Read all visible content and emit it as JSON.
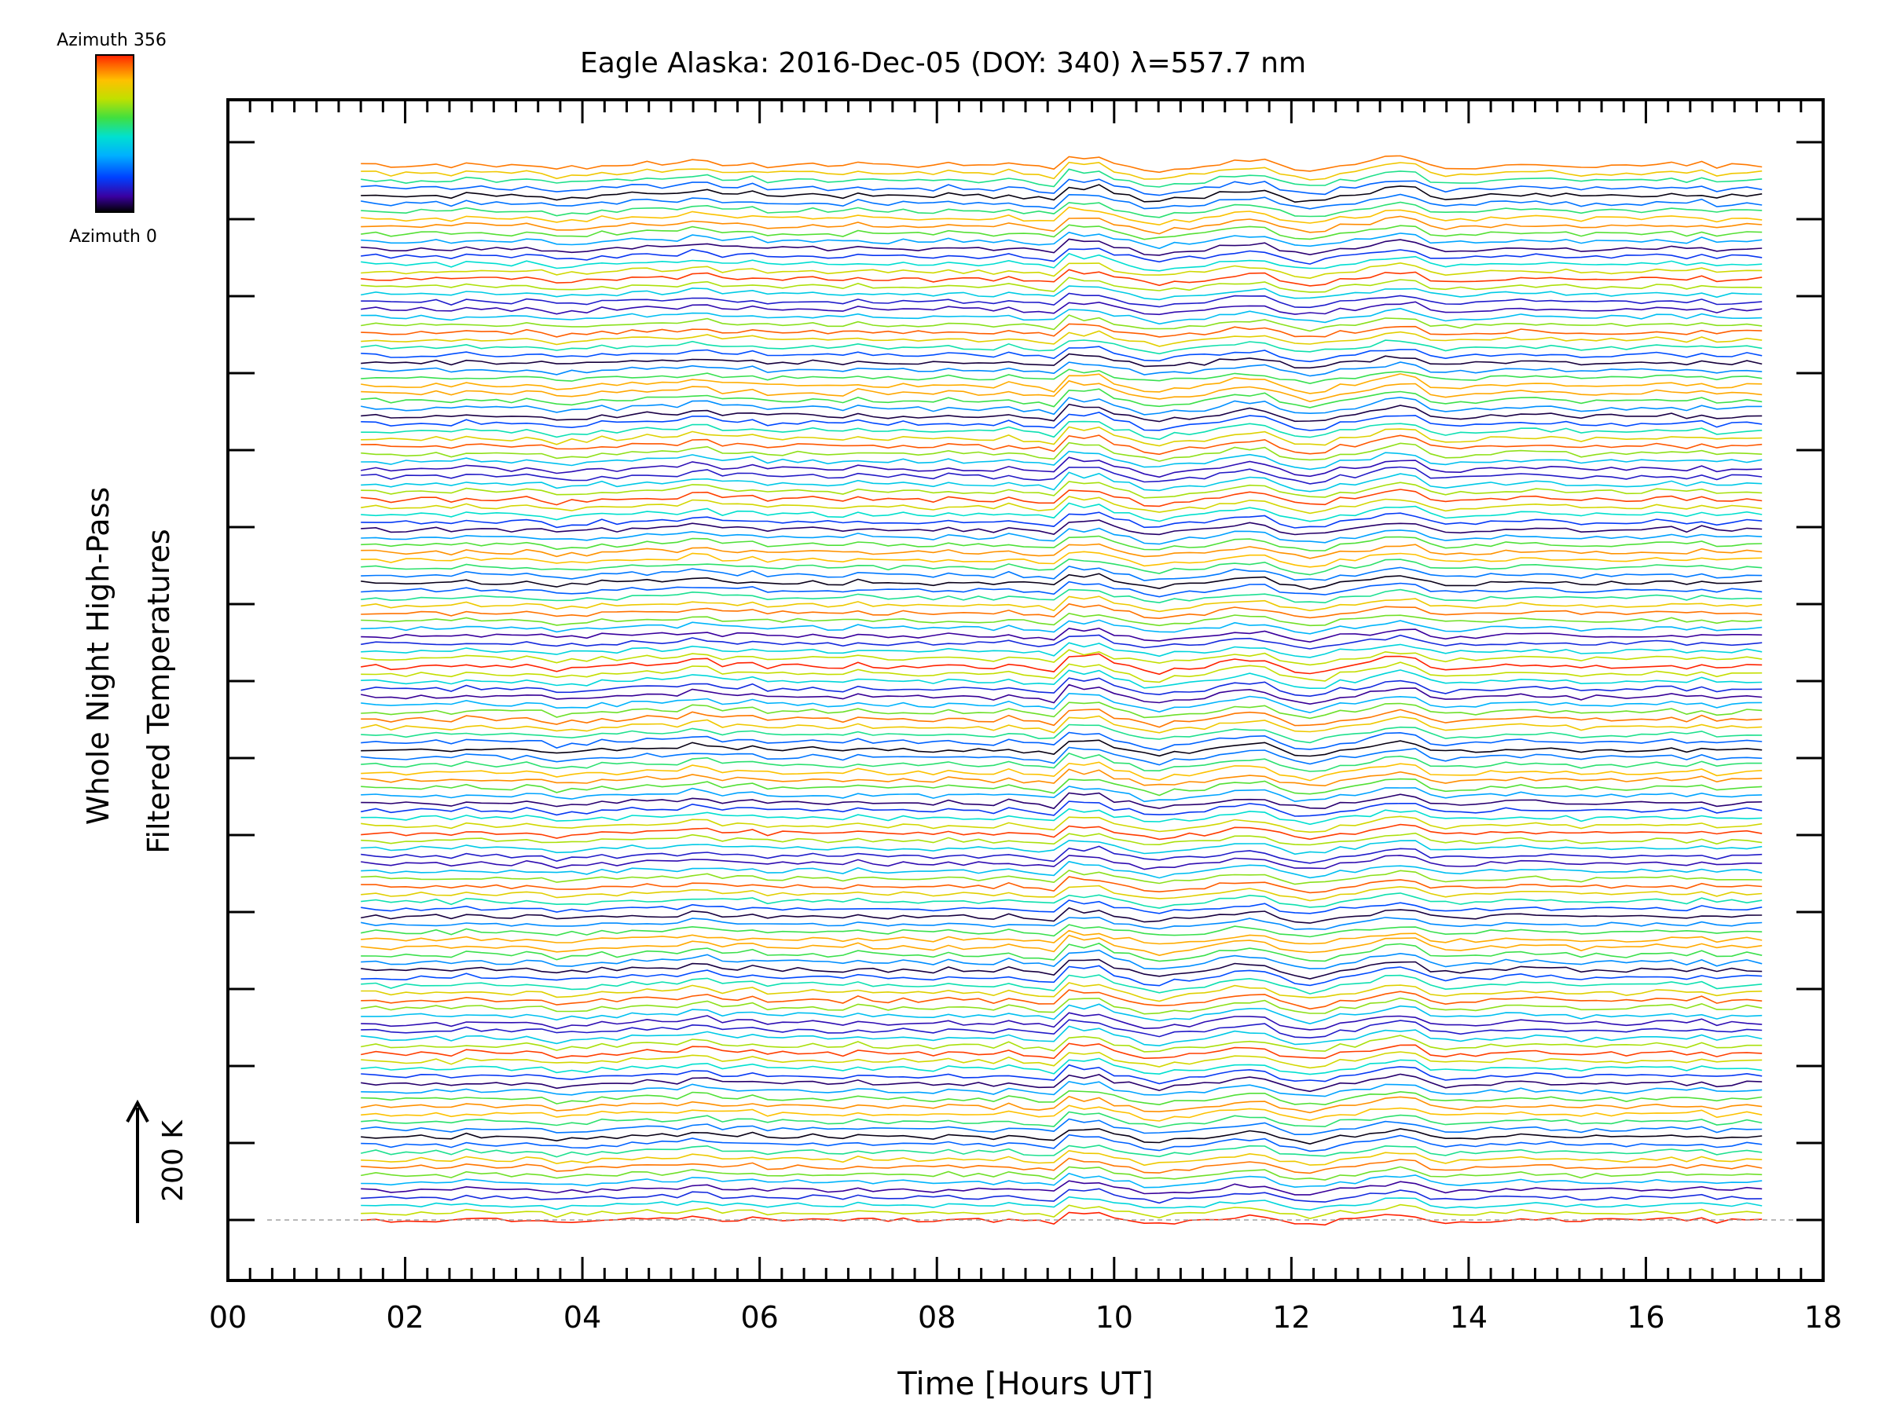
{
  "chart_data": {
    "type": "line",
    "title": "Eagle Alaska: 2016-Dec-05 (DOY: 340) λ=557.7 nm",
    "xlabel": "Time [Hours UT]",
    "ylabel_line1": "Whole Night High-Pass",
    "ylabel_line2": "Filtered Temperatures",
    "scale_label": "200 K",
    "xlim": [
      0,
      18
    ],
    "x_ticks": [
      "00",
      "02",
      "04",
      "06",
      "08",
      "10",
      "12",
      "14",
      "16",
      "18"
    ],
    "x_data_range": [
      1.5,
      17.4
    ],
    "series_count": 140,
    "azimuth_range": [
      0,
      356
    ],
    "colorbar": {
      "top_label": "Azimuth 356",
      "bottom_label": "Azimuth 0",
      "colors": [
        "#000000",
        "#3a00a0",
        "#0040ff",
        "#00b0ff",
        "#00e0d0",
        "#40e040",
        "#c0e000",
        "#ffc000",
        "#ff6000",
        "#ff2000"
      ]
    },
    "grid": false,
    "legend": "none"
  }
}
